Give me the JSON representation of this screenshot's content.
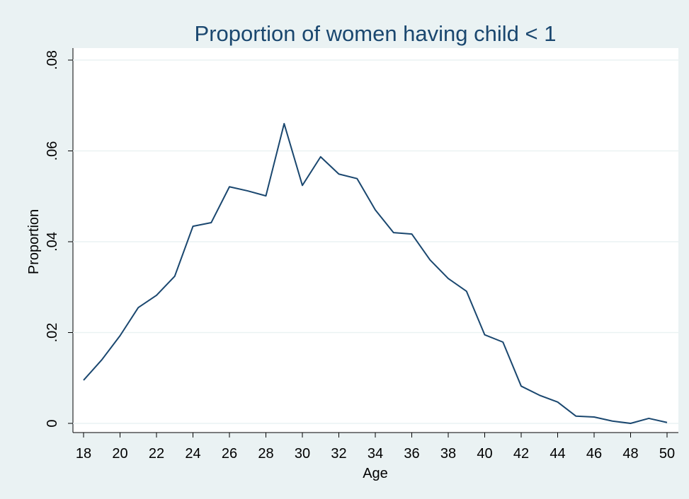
{
  "chart_data": {
    "type": "line",
    "title": "Proportion of women having child < 1",
    "x_label": "Age",
    "y_label": "Proportion",
    "x": [
      18,
      19,
      20,
      21,
      22,
      23,
      24,
      25,
      26,
      27,
      28,
      29,
      30,
      31,
      32,
      33,
      34,
      35,
      36,
      37,
      38,
      39,
      40,
      41,
      42,
      43,
      44,
      45,
      46,
      47,
      48,
      49,
      50
    ],
    "series": [
      {
        "color": "#1a476f",
        "values": [
          0.0095,
          0.014,
          0.0193,
          0.0255,
          0.0282,
          0.0324,
          0.0434,
          0.0442,
          0.0521,
          0.0512,
          0.0501,
          0.066,
          0.0524,
          0.0587,
          0.0549,
          0.0539,
          0.047,
          0.042,
          0.0417,
          0.036,
          0.0319,
          0.0291,
          0.0195,
          0.0179,
          0.0082,
          0.0062,
          0.0047,
          0.0016,
          0.0014,
          0.0005,
          0,
          0.0011,
          0.0002
        ]
      }
    ],
    "xlim": [
      18,
      50
    ],
    "xticks": [
      18,
      20,
      22,
      24,
      26,
      28,
      30,
      32,
      34,
      36,
      38,
      40,
      42,
      44,
      46,
      48,
      50
    ],
    "ylim": [
      0,
      0.08
    ],
    "yticks": [
      0,
      {
        "value": 0.02,
        "label": ".02"
      },
      {
        "value": 0.04,
        "label": ".04"
      },
      {
        "value": 0.06,
        "label": ".06"
      },
      {
        "value": 0.08,
        "label": ".08"
      }
    ],
    "grid": true
  }
}
